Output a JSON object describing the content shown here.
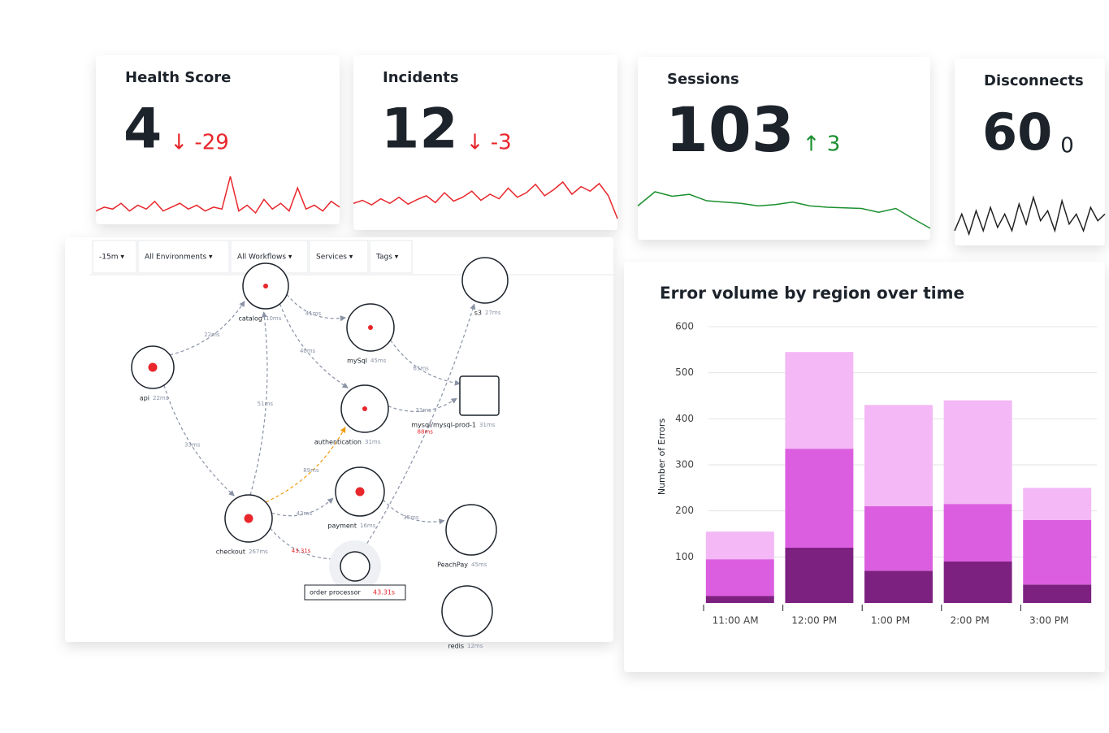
{
  "cards": [
    {
      "title": "Health Score",
      "value": "4",
      "delta": "↓ -29",
      "delta_color": "#e8262b",
      "line_color": "#e8262b",
      "sparkline": [
        30,
        32,
        31,
        34,
        30,
        33,
        31,
        35,
        30,
        32,
        34,
        31,
        33,
        30,
        32,
        31,
        48,
        30,
        33,
        29,
        36,
        31,
        34,
        30,
        42,
        31,
        33,
        30,
        35,
        32
      ]
    },
    {
      "title": "Incidents",
      "value": "12",
      "delta": "↓ -3",
      "delta_color": "#e8262b",
      "line_color": "#e8262b",
      "sparkline": [
        30,
        34,
        28,
        36,
        30,
        38,
        29,
        35,
        40,
        31,
        44,
        33,
        38,
        46,
        34,
        42,
        36,
        50,
        38,
        44,
        55,
        40,
        48,
        58,
        42,
        52,
        46,
        56,
        40,
        10
      ]
    },
    {
      "title": "Sessions",
      "value": "103",
      "delta": "↑ 3",
      "delta_color": "#1a8f2e",
      "line_color": "#1a8f2e",
      "sparkline": [
        40,
        62,
        55,
        58,
        48,
        46,
        44,
        40,
        42,
        46,
        40,
        38,
        37,
        36,
        30,
        36,
        20,
        5
      ]
    },
    {
      "title": "Disconnects",
      "value": "60",
      "delta": "0",
      "delta_color": "#1d232b",
      "line_color": "#222222",
      "sparkline": [
        30,
        40,
        28,
        42,
        30,
        44,
        32,
        40,
        30,
        46,
        34,
        50,
        36,
        42,
        30,
        48,
        34,
        40,
        30,
        44,
        36,
        40
      ]
    }
  ],
  "map": {
    "filters": [
      "-15m ▾",
      "All Environments ▾",
      "All Workflows ▾",
      "Services ▾",
      "Tags ▾"
    ],
    "nodes": [
      {
        "label": "api",
        "latency": "22ms"
      },
      {
        "label": "catalog",
        "latency": "10ms"
      },
      {
        "label": "mySql",
        "latency": "45ms"
      },
      {
        "label": "authentication",
        "latency": "31ms"
      },
      {
        "label": "payment",
        "latency": "16ms"
      },
      {
        "label": "checkout",
        "latency": "267ms"
      },
      {
        "label": "order processor",
        "latency": "43.31s"
      },
      {
        "label": "s3",
        "latency": "27ms"
      },
      {
        "label": "mysql/mysql-prod-1",
        "latency": "31ms"
      },
      {
        "label": "PeachPay",
        "latency": "45ms"
      },
      {
        "label": "redis",
        "latency": "12ms"
      }
    ],
    "edges": [
      "22ms",
      "33ms",
      "41ms",
      "40ms",
      "65ms",
      "33ms",
      "51ms",
      "89ms",
      "43.31s",
      "35ms",
      "88ms",
      "43ms"
    ]
  },
  "chart_data": {
    "type": "bar",
    "title": "Error volume by region over time",
    "y_label": "Number of Errors",
    "categories": [
      "11:00 AM",
      "12:00 PM",
      "1:00 PM",
      "2:00 PM",
      "3:00 PM"
    ],
    "series": [
      {
        "color": "#7d2181",
        "values": [
          15,
          120,
          70,
          90,
          40
        ]
      },
      {
        "color": "#dc5ee0",
        "values": [
          80,
          215,
          140,
          125,
          140
        ]
      },
      {
        "color": "#f3b8f5",
        "values": [
          60,
          210,
          220,
          225,
          70
        ]
      }
    ],
    "ylim": [
      0,
      600
    ],
    "yticks": [
      100,
      200,
      300,
      400,
      500,
      600
    ],
    "grid": true
  }
}
